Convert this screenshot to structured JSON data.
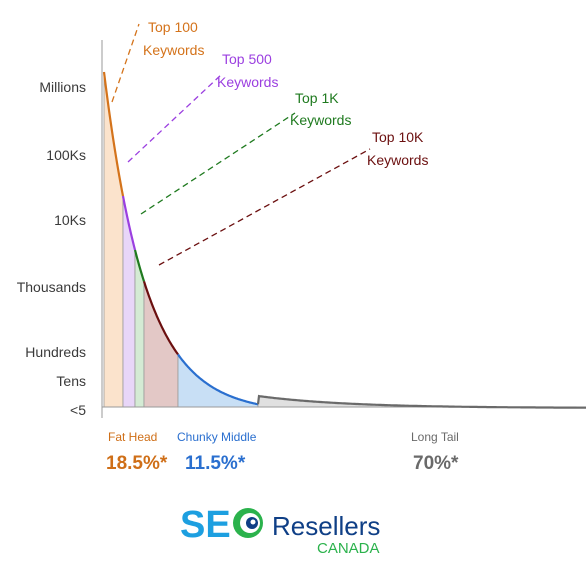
{
  "chart_data": {
    "type": "area",
    "y_axis_ticks": [
      "Millions",
      "100Ks",
      "10Ks",
      "Thousands",
      "Hundreds",
      "Tens",
      "<5"
    ],
    "callouts": [
      {
        "line1": "Top 100",
        "line2": "Keywords",
        "color": "#d4731b"
      },
      {
        "line1": "Top 500",
        "line2": "Keywords",
        "color": "#9b3fe0"
      },
      {
        "line1": "Top 1K",
        "line2": "Keywords",
        "color": "#1f7a1f"
      },
      {
        "line1": "Top 10K",
        "line2": "Keywords",
        "color": "#6b0f0f"
      }
    ],
    "segments": [
      {
        "name": "Fat Head",
        "percent": "18.5%*",
        "color": "#cf6f18"
      },
      {
        "name": "Chunky Middle",
        "percent": "11.5%*",
        "color": "#2a6fcf"
      },
      {
        "name": "Long Tail",
        "percent": "70%*",
        "color": "#6a6a6a"
      }
    ]
  },
  "logo": {
    "seo": "SE",
    "resellers": "Resellers",
    "canada": "CANADA",
    "colors": {
      "blue": "#1d9fe0",
      "green": "#2bb24c",
      "navy": "#0f3f86"
    }
  }
}
